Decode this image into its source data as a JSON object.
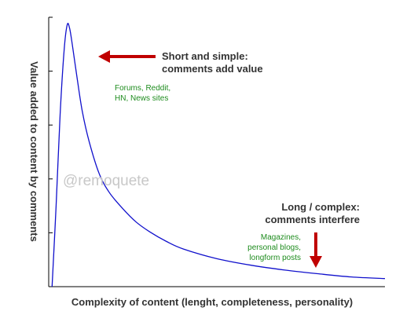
{
  "chart_data": {
    "type": "line",
    "title": "",
    "xlabel": "Complexity of content (lenght, completeness, personality)",
    "ylabel": "Value added to content by comments",
    "xlim": [
      0,
      10
    ],
    "ylim": [
      0,
      5
    ],
    "grid": false,
    "y_ticks": [
      1,
      2,
      3,
      4,
      5
    ],
    "series": [
      {
        "color": "#1010cc",
        "points": [
          [
            0.1,
            0.0
          ],
          [
            0.22,
            1.5
          ],
          [
            0.34,
            3.2
          ],
          [
            0.46,
            4.4
          ],
          [
            0.55,
            4.86
          ],
          [
            0.62,
            4.8
          ],
          [
            0.7,
            4.5
          ],
          [
            0.85,
            3.85
          ],
          [
            1.0,
            3.25
          ],
          [
            1.2,
            2.7
          ],
          [
            1.5,
            2.1
          ],
          [
            1.8,
            1.75
          ],
          [
            2.2,
            1.45
          ],
          [
            2.6,
            1.2
          ],
          [
            3.0,
            1.02
          ],
          [
            3.5,
            0.84
          ],
          [
            4.0,
            0.7
          ],
          [
            5.0,
            0.52
          ],
          [
            6.0,
            0.4
          ],
          [
            7.0,
            0.31
          ],
          [
            8.0,
            0.24
          ],
          [
            9.0,
            0.18
          ],
          [
            10.0,
            0.15
          ]
        ]
      }
    ]
  },
  "annotations": {
    "short": {
      "line1": "Short and simple:",
      "line2": "comments add value",
      "examples1": "Forums, Reddit,",
      "examples2": "HN, News sites"
    },
    "long": {
      "line1": "Long / complex:",
      "line2": "comments interfere",
      "examples1": "Magazines,",
      "examples2": "personal blogs,",
      "examples3": "longform posts"
    },
    "watermark": "@remoquete"
  },
  "colors": {
    "curve": "#1010cc",
    "arrow": "#c00000",
    "example_text": "#1e8c1e",
    "label_text": "#333333",
    "watermark": "#c8c8c8",
    "axis": "#000000"
  }
}
